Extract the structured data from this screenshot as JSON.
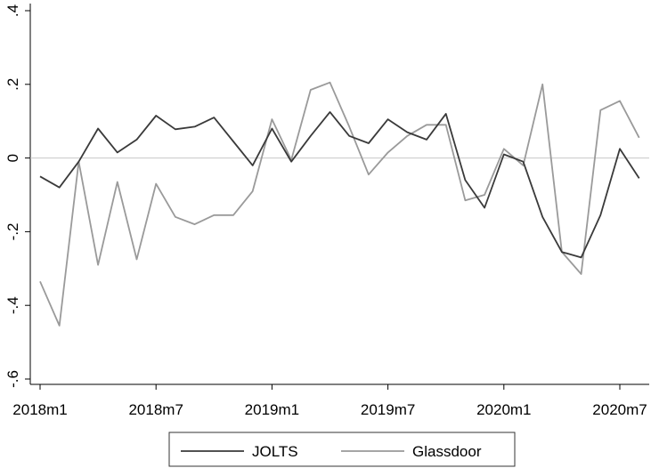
{
  "chart_data": {
    "type": "line",
    "title": "",
    "xlabel": "",
    "ylabel": "",
    "ylim": [
      -0.6,
      0.4
    ],
    "y_ticks": [
      {
        "value": 0.4,
        "label": ".4"
      },
      {
        "value": 0.2,
        "label": ".2"
      },
      {
        "value": 0,
        "label": "0"
      },
      {
        "value": -0.2,
        "label": "-.2"
      },
      {
        "value": -0.4,
        "label": "-.4"
      },
      {
        "value": -0.6,
        "label": "-.6"
      }
    ],
    "x_ticks": [
      {
        "index": 0,
        "label": "2018m1"
      },
      {
        "index": 6,
        "label": "2018m7"
      },
      {
        "index": 12,
        "label": "2019m1"
      },
      {
        "index": 18,
        "label": "2019m7"
      },
      {
        "index": 24,
        "label": "2020m1"
      },
      {
        "index": 30,
        "label": "2020m7"
      }
    ],
    "x": [
      "2018m1",
      "2018m2",
      "2018m3",
      "2018m4",
      "2018m5",
      "2018m6",
      "2018m7",
      "2018m8",
      "2018m9",
      "2018m10",
      "2018m11",
      "2018m12",
      "2019m1",
      "2019m2",
      "2019m3",
      "2019m4",
      "2019m5",
      "2019m6",
      "2019m7",
      "2019m8",
      "2019m9",
      "2019m10",
      "2019m11",
      "2019m12",
      "2020m1",
      "2020m2",
      "2020m3",
      "2020m4",
      "2020m5",
      "2020m6",
      "2020m7",
      "2020m8"
    ],
    "reference_line": 0,
    "grid": false,
    "legend_position": "bottom",
    "series": [
      {
        "name": "JOLTS",
        "color": "#3a3a3a",
        "values": [
          -0.05,
          -0.08,
          -0.01,
          0.08,
          0.015,
          0.05,
          0.115,
          0.078,
          0.085,
          0.11,
          0.045,
          -0.02,
          0.08,
          -0.01,
          0.06,
          0.125,
          0.06,
          0.04,
          0.105,
          0.07,
          0.05,
          0.12,
          -0.06,
          -0.135,
          0.01,
          -0.01,
          -0.16,
          -0.255,
          -0.27,
          -0.155,
          0.025,
          -0.055
        ]
      },
      {
        "name": "Glassdoor",
        "color": "#9a9a9a",
        "values": [
          -0.335,
          -0.455,
          -0.01,
          -0.29,
          -0.065,
          -0.275,
          -0.07,
          -0.16,
          -0.18,
          -0.155,
          -0.155,
          -0.09,
          0.105,
          -0.005,
          0.185,
          0.205,
          0.085,
          -0.045,
          0.015,
          0.06,
          0.09,
          0.09,
          -0.115,
          -0.1,
          0.025,
          -0.02,
          0.2,
          -0.255,
          -0.315,
          0.13,
          0.155,
          0.055
        ]
      }
    ]
  }
}
